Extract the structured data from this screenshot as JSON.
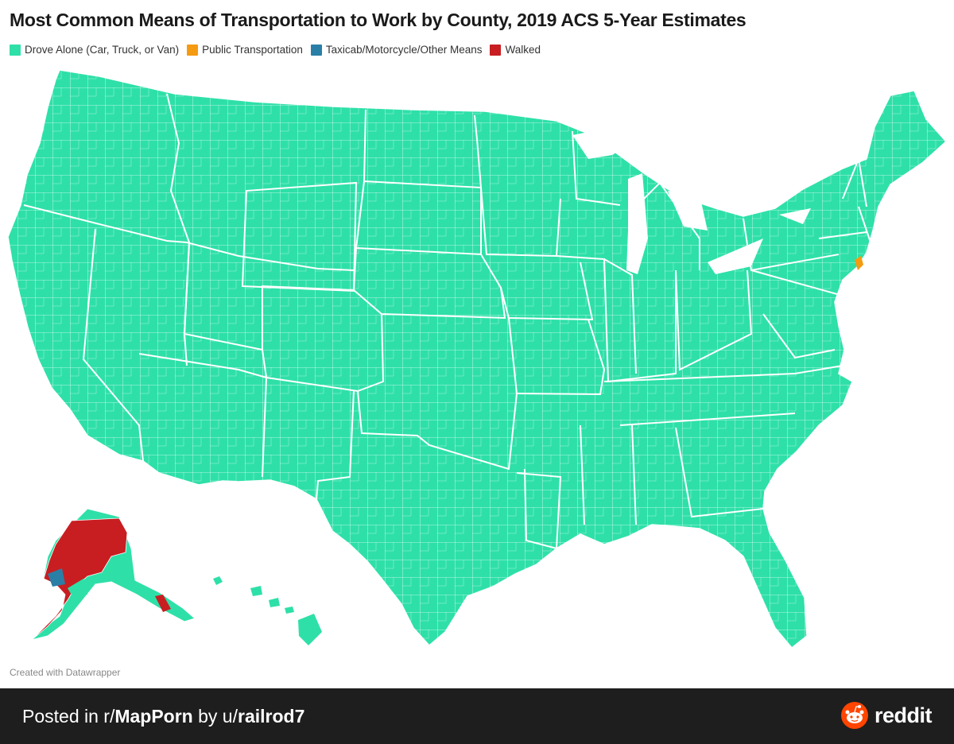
{
  "title": "Most Common Means of Transportation to Work by County, 2019 ACS 5-Year Estimates",
  "legend": [
    {
      "label": "Drove Alone (Car, Truck, or Van)",
      "color": "#2ee0a8"
    },
    {
      "label": "Public Transportation",
      "color": "#f59b12"
    },
    {
      "label": "Taxicab/Motorcycle/Other Means",
      "color": "#2a7fa6"
    },
    {
      "label": "Walked",
      "color": "#c81e22"
    }
  ],
  "credit": "Created with Datawrapper",
  "footer": {
    "posted_in": "Posted in r/",
    "subreddit": "MapPorn",
    "by": " by u/",
    "user": "railrod7",
    "brand": "reddit"
  },
  "icons": {
    "brand_logo": "reddit-logo-icon"
  }
}
